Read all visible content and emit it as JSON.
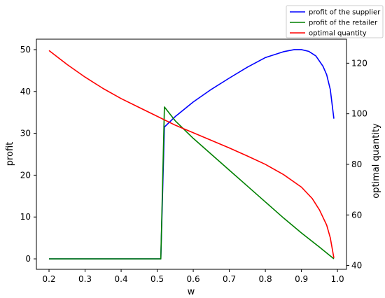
{
  "chart_data": {
    "type": "line",
    "xlabel": "w",
    "ylabel": "profit",
    "y2label": "optimal quantity",
    "xlim": [
      0.165,
      1.025
    ],
    "ylim": [
      -2.5,
      52.5
    ],
    "y2lim": [
      38.5,
      129.5
    ],
    "xticks": [
      0.2,
      0.3,
      0.4,
      0.5,
      0.6,
      0.7,
      0.8,
      0.9,
      1.0
    ],
    "yticks": [
      0,
      10,
      20,
      30,
      40,
      50
    ],
    "y2ticks": [
      40,
      60,
      80,
      100,
      120
    ],
    "grid": false,
    "legend_position": "top-right, outside plot",
    "series": [
      {
        "name": "profit of the supplier",
        "color": "#0000ff",
        "axis": "left",
        "points": [
          [
            0.2,
            0
          ],
          [
            0.3,
            0
          ],
          [
            0.4,
            0
          ],
          [
            0.5,
            0
          ],
          [
            0.51,
            0
          ],
          [
            0.52,
            31.5
          ],
          [
            0.55,
            34.0
          ],
          [
            0.6,
            37.5
          ],
          [
            0.65,
            40.5
          ],
          [
            0.7,
            43.2
          ],
          [
            0.75,
            45.8
          ],
          [
            0.8,
            48.1
          ],
          [
            0.85,
            49.5
          ],
          [
            0.88,
            50.0
          ],
          [
            0.9,
            50.0
          ],
          [
            0.92,
            49.6
          ],
          [
            0.94,
            48.5
          ],
          [
            0.96,
            46.0
          ],
          [
            0.97,
            44.0
          ],
          [
            0.98,
            40.5
          ],
          [
            0.99,
            33.5
          ]
        ]
      },
      {
        "name": "profit of the retailer",
        "color": "#008000",
        "axis": "left",
        "points": [
          [
            0.2,
            0
          ],
          [
            0.3,
            0
          ],
          [
            0.4,
            0
          ],
          [
            0.5,
            0
          ],
          [
            0.51,
            0
          ],
          [
            0.52,
            36.3
          ],
          [
            0.55,
            33.0
          ],
          [
            0.6,
            28.8
          ],
          [
            0.65,
            25.0
          ],
          [
            0.7,
            21.2
          ],
          [
            0.75,
            17.4
          ],
          [
            0.8,
            13.6
          ],
          [
            0.85,
            9.8
          ],
          [
            0.9,
            6.2
          ],
          [
            0.95,
            2.8
          ],
          [
            0.99,
            0
          ]
        ]
      },
      {
        "name": "optimal quantity",
        "color": "#ff0000",
        "axis": "right",
        "points": [
          [
            0.2,
            125
          ],
          [
            0.25,
            119.5
          ],
          [
            0.3,
            114.5
          ],
          [
            0.35,
            110
          ],
          [
            0.4,
            106
          ],
          [
            0.45,
            102.5
          ],
          [
            0.5,
            99
          ],
          [
            0.55,
            95.5
          ],
          [
            0.6,
            92.5
          ],
          [
            0.65,
            89.5
          ],
          [
            0.7,
            86.5
          ],
          [
            0.75,
            83.3
          ],
          [
            0.8,
            80
          ],
          [
            0.85,
            76
          ],
          [
            0.9,
            71
          ],
          [
            0.93,
            66.5
          ],
          [
            0.95,
            62
          ],
          [
            0.97,
            56
          ],
          [
            0.98,
            51
          ],
          [
            0.99,
            43
          ]
        ]
      }
    ]
  }
}
